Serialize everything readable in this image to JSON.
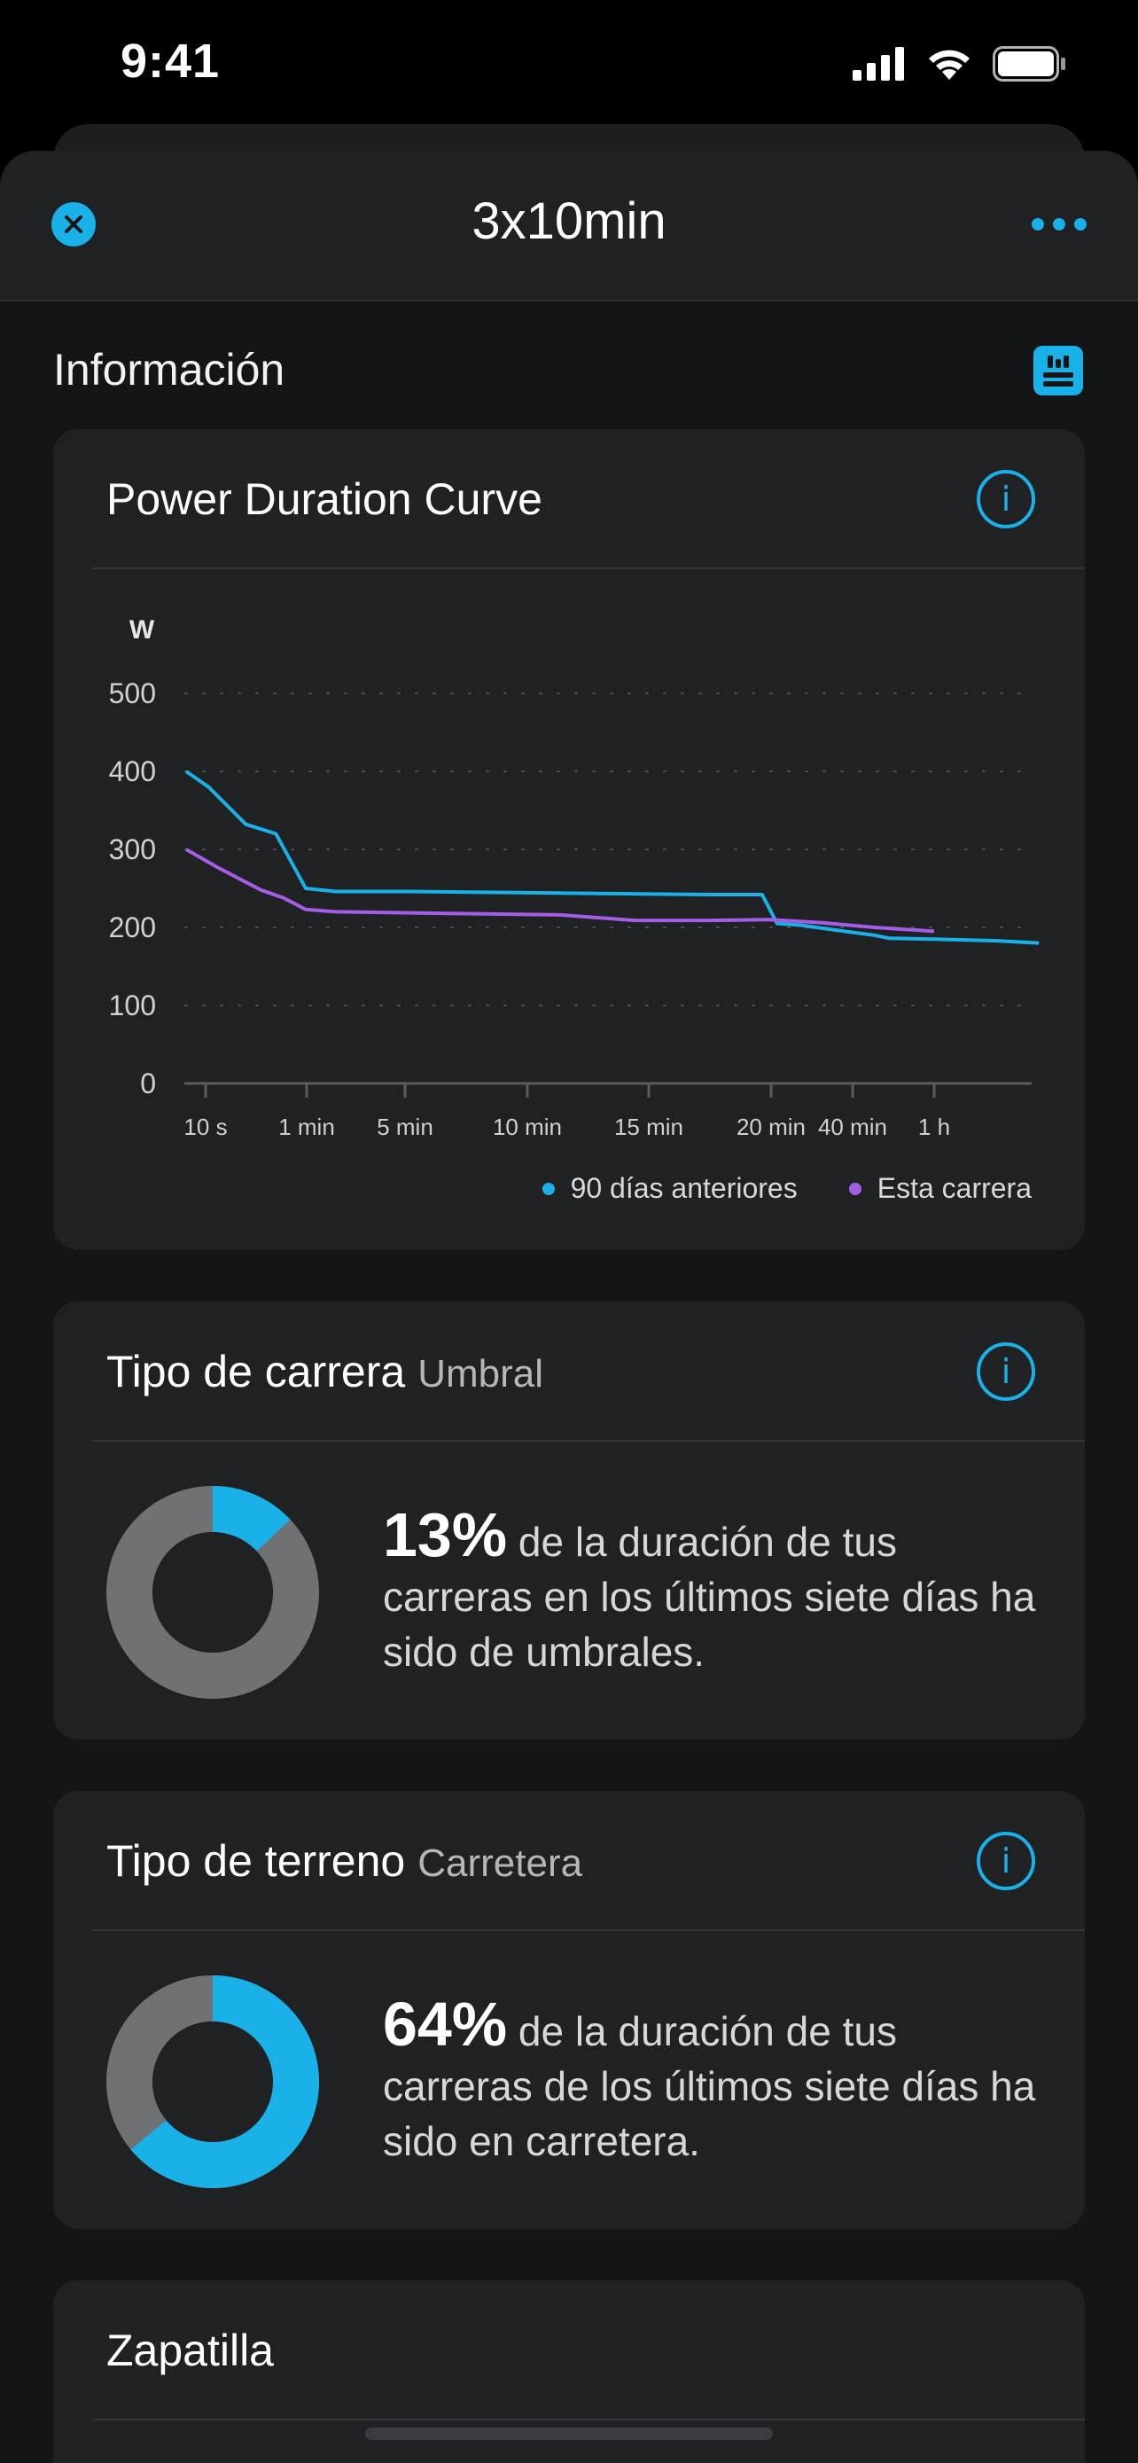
{
  "status_bar": {
    "time": "9:41"
  },
  "nav": {
    "title": "3x10min"
  },
  "section": {
    "title": "Información"
  },
  "power_card": {
    "title": "Power Duration Curve",
    "info_label": "i"
  },
  "chart_data": {
    "type": "line",
    "ylabel": "W",
    "ylim": [
      0,
      500
    ],
    "yticks": [
      "500",
      "400",
      "300",
      "200",
      "100",
      "0"
    ],
    "xticks": [
      "10 s",
      "1 min",
      "5 min",
      "10 min",
      "15 min",
      "20 min",
      "40 min",
      "1 h"
    ],
    "grid": "horizontal dashed",
    "legend_position": "bottom-right",
    "series": [
      {
        "name": "90 días anteriores",
        "color": "#1ab0e8",
        "points": [
          [
            0,
            400
          ],
          [
            0.03,
            380
          ],
          [
            0.08,
            332
          ],
          [
            0.12,
            320
          ],
          [
            0.16,
            250
          ],
          [
            0.2,
            246
          ],
          [
            0.3,
            246
          ],
          [
            0.5,
            244
          ],
          [
            0.7,
            242
          ],
          [
            0.77,
            242
          ],
          [
            0.79,
            205
          ],
          [
            0.82,
            203
          ],
          [
            0.88,
            195
          ],
          [
            0.92,
            190
          ],
          [
            0.94,
            186
          ],
          [
            1.0,
            185
          ],
          [
            1.08,
            183
          ],
          [
            1.14,
            180
          ]
        ]
      },
      {
        "name": "Esta carrera",
        "color": "#a35de6",
        "points": [
          [
            0,
            300
          ],
          [
            0.04,
            278
          ],
          [
            0.1,
            248
          ],
          [
            0.13,
            238
          ],
          [
            0.16,
            223
          ],
          [
            0.2,
            220
          ],
          [
            0.35,
            218
          ],
          [
            0.5,
            216
          ],
          [
            0.6,
            209
          ],
          [
            0.7,
            209
          ],
          [
            0.78,
            210
          ],
          [
            0.85,
            206
          ],
          [
            0.92,
            200
          ],
          [
            1.0,
            195
          ]
        ]
      }
    ]
  },
  "run_type_card": {
    "title": "Tipo de carrera",
    "subtitle": "Umbral",
    "percent_text": "13%",
    "description": " de la duración de tus carreras en los últimos siete días ha sido de umbrales.",
    "percent_value": 13,
    "accent": "#1ab0e8",
    "track": "#6f7173"
  },
  "terrain_card": {
    "title": "Tipo de terreno",
    "subtitle": "Carretera",
    "percent_text": "64%",
    "description": " de la duración de tus carreras de los últimos siete días ha sido en carretera.",
    "percent_value": 64,
    "accent": "#1ab0e8",
    "track": "#6f7173"
  },
  "shoe_card": {
    "title": "Zapatilla"
  }
}
